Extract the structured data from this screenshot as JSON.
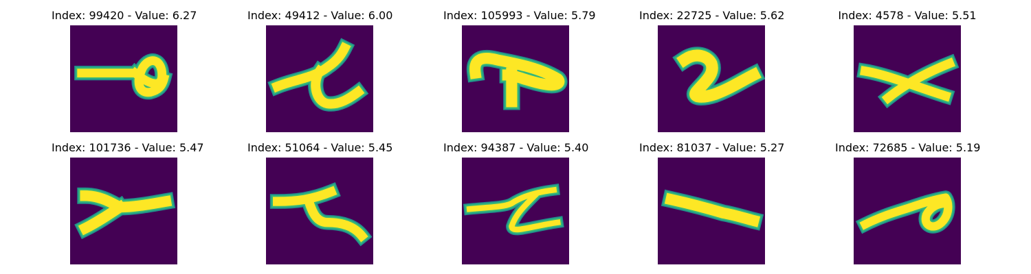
{
  "colors": {
    "background": "#440154",
    "stroke": "#fde725",
    "edge": "#35b779",
    "edge2": "#21918c"
  },
  "grid": [
    {
      "title": "Index: 99420 - Value: 6.27",
      "glyph": "g1"
    },
    {
      "title": "Index: 49412 - Value: 6.00",
      "glyph": "g2"
    },
    {
      "title": "Index: 105993 - Value: 5.79",
      "glyph": "g3"
    },
    {
      "title": "Index: 22725 - Value: 5.62",
      "glyph": "g4"
    },
    {
      "title": "Index: 4578 - Value: 5.51",
      "glyph": "g5"
    },
    {
      "title": "Index: 101736 - Value: 5.47",
      "glyph": "g6"
    },
    {
      "title": "Index: 51064 - Value: 5.45",
      "glyph": "g7"
    },
    {
      "title": "Index: 94387 - Value: 5.40",
      "glyph": "g8"
    },
    {
      "title": "Index: 81037 - Value: 5.27",
      "glyph": "g9"
    },
    {
      "title": "Index: 72685 - Value: 5.19",
      "glyph": "g10"
    }
  ]
}
